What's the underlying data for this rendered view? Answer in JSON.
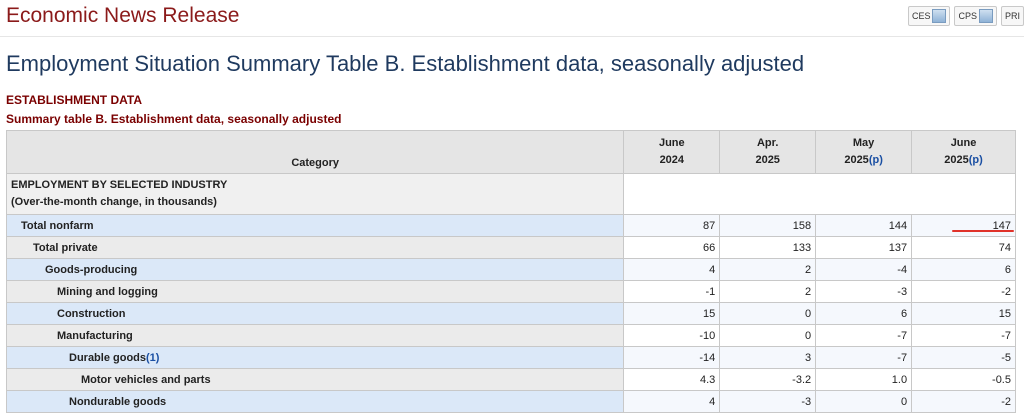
{
  "site": {
    "title": "Economic News Release"
  },
  "toolbar": {
    "pills": [
      {
        "label": "CES",
        "icon": "chart-icon"
      },
      {
        "label": "CPS",
        "icon": "chart-icon"
      },
      {
        "label": "PRI",
        "icon": "chart-icon"
      }
    ]
  },
  "page": {
    "title": "Employment Situation Summary Table B. Establishment data, seasonally adjusted"
  },
  "section": {
    "title": "ESTABLISHMENT DATA"
  },
  "table": {
    "caption": "Summary table B. Establishment data, seasonally adjusted",
    "header": {
      "category": "Category",
      "periods": [
        {
          "month": "June",
          "year": "2024",
          "p": ""
        },
        {
          "month": "Apr.",
          "year": "2025",
          "p": ""
        },
        {
          "month": "May",
          "year": "2025",
          "p": "(p)"
        },
        {
          "month": "June",
          "year": "2025",
          "p": "(p)"
        }
      ]
    },
    "group": {
      "line1": "EMPLOYMENT BY SELECTED INDUSTRY",
      "line2": "(Over-the-month change, in thousands)"
    },
    "rows": [
      {
        "label": "Total nonfarm",
        "note": "",
        "values": [
          "87",
          "158",
          "144",
          "147"
        ]
      },
      {
        "label": "Total private",
        "note": "",
        "values": [
          "66",
          "133",
          "137",
          "74"
        ]
      },
      {
        "label": "Goods-producing",
        "note": "",
        "values": [
          "4",
          "2",
          "-4",
          "6"
        ]
      },
      {
        "label": "Mining and logging",
        "note": "",
        "values": [
          "-1",
          "2",
          "-3",
          "-2"
        ]
      },
      {
        "label": "Construction",
        "note": "",
        "values": [
          "15",
          "0",
          "6",
          "15"
        ]
      },
      {
        "label": "Manufacturing",
        "note": "",
        "values": [
          "-10",
          "0",
          "-7",
          "-7"
        ]
      },
      {
        "label": "Durable goods",
        "note": "(1)",
        "values": [
          "-14",
          "3",
          "-7",
          "-5"
        ]
      },
      {
        "label": "Motor vehicles and parts",
        "note": "",
        "values": [
          "4.3",
          "-3.2",
          "1.0",
          "-0.5"
        ]
      },
      {
        "label": "Nondurable goods",
        "note": "",
        "values": [
          "4",
          "-3",
          "0",
          "-2"
        ]
      }
    ]
  },
  "annotation": {
    "color": "#e0322a"
  }
}
